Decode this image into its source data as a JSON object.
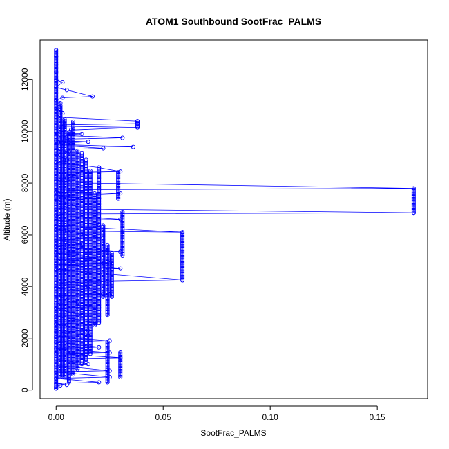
{
  "chart_data": {
    "type": "scatter",
    "title": "ATOM1 Southbound SootFrac_PALMS",
    "xlabel": "SootFrac_PALMS",
    "ylabel": "Altitude (m)",
    "xlim": [
      -0.0075,
      0.1735
    ],
    "ylim": [
      -330,
      13530
    ],
    "x_ticks": [
      0,
      0.05,
      0.1,
      0.15
    ],
    "x_tick_labels": [
      "0.00",
      "0.05",
      "0.10",
      "0.15"
    ],
    "y_ticks": [
      0,
      2000,
      4000,
      6000,
      8000,
      10000,
      12000
    ],
    "y_tick_labels": [
      "0",
      "2000",
      "4000",
      "6000",
      "8000",
      "10000",
      "12000"
    ],
    "grid": false,
    "legend": "none",
    "marker": "open-circle",
    "connected": true,
    "color": "#0000ff",
    "series": [
      {
        "points": [
          [
            0,
            13150
          ],
          [
            0,
            12900
          ],
          [
            0,
            12600
          ],
          [
            0,
            12300
          ],
          [
            0,
            12000
          ],
          [
            0.003,
            11900
          ],
          [
            0,
            11700
          ],
          [
            0.005,
            11600
          ],
          [
            0.017,
            11350
          ],
          [
            0.003,
            11300
          ],
          [
            0,
            11200
          ],
          [
            0.002,
            11100
          ],
          [
            0,
            10900
          ],
          [
            0.003,
            10700
          ],
          [
            0,
            10550
          ],
          [
            0.038,
            10400
          ],
          [
            0.038,
            10300
          ],
          [
            0.004,
            10250
          ],
          [
            0,
            10200
          ],
          [
            0.038,
            10150
          ],
          [
            0.007,
            10050
          ],
          [
            0,
            9950
          ],
          [
            0.012,
            9900
          ],
          [
            0,
            9850
          ],
          [
            0.031,
            9750
          ],
          [
            0.005,
            9700
          ],
          [
            0,
            9650
          ],
          [
            0.015,
            9600
          ],
          [
            0.003,
            9550
          ],
          [
            0,
            9500
          ],
          [
            0.036,
            9400
          ],
          [
            0.003,
            9450
          ],
          [
            0.022,
            9350
          ],
          [
            0,
            9300
          ],
          [
            0.006,
            9200
          ],
          [
            0,
            9100
          ],
          [
            0.005,
            8900
          ],
          [
            0,
            8800
          ],
          [
            0.02,
            8600
          ],
          [
            0.03,
            8450
          ],
          [
            0,
            8400
          ],
          [
            0.01,
            8300
          ],
          [
            0.005,
            8200
          ],
          [
            0,
            8100
          ],
          [
            0.016,
            8000
          ],
          [
            0.167,
            7800
          ],
          [
            0.02,
            7750
          ],
          [
            0.003,
            7700
          ],
          [
            0,
            7650
          ],
          [
            0.03,
            7600
          ],
          [
            0,
            7500
          ],
          [
            0.02,
            7400
          ],
          [
            0,
            7350
          ],
          [
            0.01,
            7100
          ],
          [
            0,
            7000
          ],
          [
            0.167,
            6850
          ],
          [
            0.004,
            6800
          ],
          [
            0,
            6750
          ],
          [
            0.03,
            6600
          ],
          [
            0,
            6550
          ],
          [
            0.02,
            6400
          ],
          [
            0,
            6350
          ],
          [
            0.059,
            6100
          ],
          [
            0.005,
            6150
          ],
          [
            0,
            6200
          ],
          [
            0.02,
            5900
          ],
          [
            0,
            5800
          ],
          [
            0.012,
            5650
          ],
          [
            0.005,
            5600
          ],
          [
            0,
            5550
          ],
          [
            0.03,
            5350
          ],
          [
            0,
            5300
          ],
          [
            0.02,
            5100
          ],
          [
            0,
            5050
          ],
          [
            0.025,
            4900
          ],
          [
            0,
            4850
          ],
          [
            0.03,
            4700
          ],
          [
            0,
            4650
          ],
          [
            0.059,
            4250
          ],
          [
            0.02,
            4200
          ],
          [
            0,
            4150
          ],
          [
            0.015,
            4000
          ],
          [
            0,
            3950
          ],
          [
            0.025,
            3700
          ],
          [
            0,
            3650
          ],
          [
            0.01,
            3400
          ],
          [
            0,
            3350
          ],
          [
            0.02,
            3200
          ],
          [
            0,
            3150
          ],
          [
            0.012,
            2900
          ],
          [
            0,
            2850
          ],
          [
            0.018,
            2600
          ],
          [
            0,
            2550
          ],
          [
            0.015,
            2300
          ],
          [
            0,
            2250
          ],
          [
            0.015,
            2100
          ],
          [
            0,
            2050
          ],
          [
            0.025,
            1900
          ],
          [
            0,
            1850
          ],
          [
            0.02,
            1650
          ],
          [
            0,
            1600
          ],
          [
            0.025,
            1450
          ],
          [
            0,
            1400
          ],
          [
            0.03,
            1250
          ],
          [
            0,
            1200
          ],
          [
            0.015,
            1000
          ],
          [
            0,
            950
          ],
          [
            0.025,
            750
          ],
          [
            0,
            700
          ],
          [
            0.025,
            500
          ],
          [
            0,
            450
          ],
          [
            0.02,
            300
          ],
          [
            0,
            250
          ],
          [
            0.005,
            200
          ],
          [
            0.002,
            180
          ],
          [
            0,
            120
          ],
          [
            0,
            60
          ]
        ]
      }
    ],
    "vertical_runs": [
      {
        "x": 0,
        "y": [
          60,
          13150
        ]
      },
      {
        "x": 0.002,
        "y": [
          500,
          11000
        ]
      },
      {
        "x": 0.004,
        "y": [
          500,
          10500
        ]
      },
      {
        "x": 0.006,
        "y": [
          300,
          10000
        ]
      },
      {
        "x": 0.008,
        "y": [
          600,
          10400
        ]
      },
      {
        "x": 0.01,
        "y": [
          800,
          9300
        ]
      },
      {
        "x": 0.012,
        "y": [
          1000,
          9200
        ]
      },
      {
        "x": 0.014,
        "y": [
          1100,
          8900
        ]
      },
      {
        "x": 0.016,
        "y": [
          1400,
          8500
        ]
      },
      {
        "x": 0.018,
        "y": [
          2500,
          7600
        ]
      },
      {
        "x": 0.02,
        "y": [
          2600,
          8600
        ]
      },
      {
        "x": 0.022,
        "y": [
          3600,
          6400
        ]
      },
      {
        "x": 0.024,
        "y": [
          2900,
          5600
        ]
      },
      {
        "x": 0.026,
        "y": [
          3600,
          5300
        ]
      },
      {
        "x": 0.024,
        "y": [
          300,
          1900
        ]
      },
      {
        "x": 0.03,
        "y": [
          500,
          1500
        ]
      },
      {
        "x": 0.031,
        "y": [
          5200,
          6900
        ]
      },
      {
        "x": 0.029,
        "y": [
          7400,
          8450
        ]
      },
      {
        "x": 0.059,
        "y": [
          4250,
          6100
        ]
      },
      {
        "x": 0.167,
        "y": [
          6850,
          7800
        ]
      },
      {
        "x": 0.038,
        "y": [
          10150,
          10400
        ]
      }
    ]
  }
}
